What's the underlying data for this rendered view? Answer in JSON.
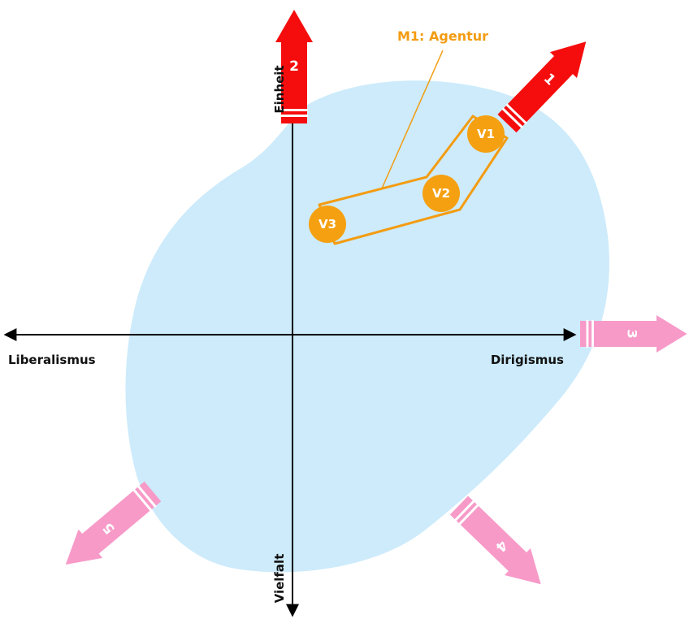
{
  "axes": {
    "vertical": {
      "top": "Einheit",
      "bottom": "Vielfalt"
    },
    "horizontal": {
      "left": "Liberalismus",
      "right": "Dirigismus"
    }
  },
  "model": {
    "label": "M1: Agentur",
    "nodes": [
      "V1",
      "V2",
      "V3"
    ]
  },
  "arrows": [
    "1",
    "2",
    "3",
    "4",
    "5"
  ]
}
